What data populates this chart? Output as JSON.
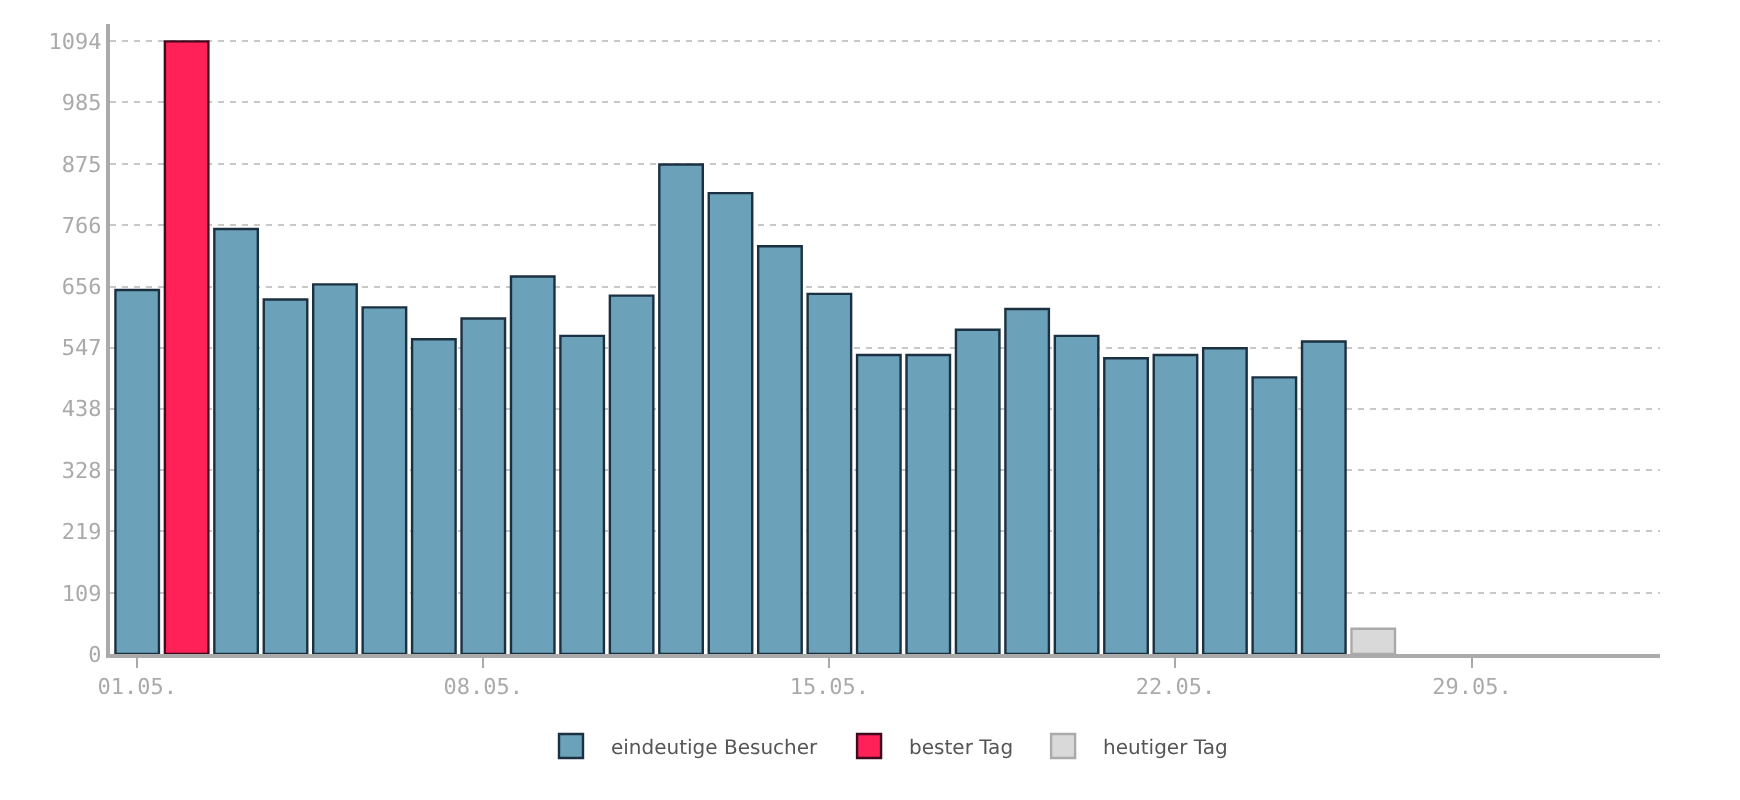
{
  "chart_data": {
    "type": "bar",
    "categories": [
      "01.05.",
      null,
      null,
      null,
      null,
      null,
      null,
      "08.05.",
      null,
      null,
      null,
      null,
      null,
      null,
      "15.05.",
      null,
      null,
      null,
      null,
      null,
      null,
      "22.05.",
      null,
      null,
      null,
      null,
      null,
      "29.05.",
      null,
      null,
      null
    ],
    "series": [
      {
        "name": "eindeutige Besucher",
        "color": "#6ca2b9",
        "values": [
          650,
          null,
          759,
          633,
          660,
          619,
          562,
          599,
          674,
          568,
          640,
          874,
          823,
          728,
          643,
          534,
          534,
          579,
          616,
          568,
          528,
          534,
          546,
          494,
          558,
          null,
          null,
          null,
          null,
          null,
          null
        ]
      },
      {
        "name": "bester Tag",
        "color": "#ff2157",
        "values": [
          null,
          1094,
          null,
          null,
          null,
          null,
          null,
          null,
          null,
          null,
          null,
          null,
          null,
          null,
          null,
          null,
          null,
          null,
          null,
          null,
          null,
          null,
          null,
          null,
          null,
          null,
          null,
          null,
          null,
          null,
          null
        ]
      },
      {
        "name": "heutiger Tag",
        "color": "#d9d9d9",
        "values": [
          null,
          null,
          null,
          null,
          null,
          null,
          null,
          null,
          null,
          null,
          null,
          null,
          null,
          null,
          null,
          null,
          null,
          null,
          null,
          null,
          null,
          null,
          null,
          null,
          null,
          45,
          null,
          null,
          null,
          null,
          null
        ]
      }
    ],
    "ylim": [
      0,
      1125
    ],
    "yticks": [
      0,
      109,
      219,
      328,
      438,
      547,
      656,
      766,
      875,
      985,
      1094
    ],
    "grid": "y",
    "legend": "bottom"
  }
}
